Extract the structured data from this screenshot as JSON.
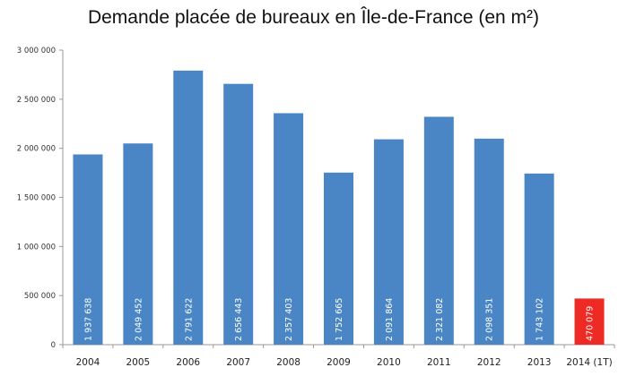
{
  "chart_data": {
    "type": "bar",
    "title": "Demande placée de bureaux en Île-de-France (en m²)",
    "categories": [
      "2004",
      "2005",
      "2006",
      "2007",
      "2008",
      "2009",
      "2010",
      "2011",
      "2012",
      "2013",
      "2014 (1T)"
    ],
    "values": [
      1937638,
      2049452,
      2791622,
      2656443,
      2357403,
      1752665,
      2091864,
      2321082,
      2098351,
      1743102,
      470079
    ],
    "data_labels": [
      "1 937 638",
      "2 049 452",
      "2 791 622",
      "2 656 443",
      "2 357 403",
      "1 752 665",
      "2 091 864",
      "2 321 082",
      "2 098 351",
      "1 743 102",
      "470 079"
    ],
    "ylim": [
      0,
      3000000
    ],
    "yticks": [
      0,
      500000,
      1000000,
      1500000,
      2000000,
      2500000,
      3000000
    ],
    "ytick_labels": [
      "0",
      "500 000",
      "1 000 000",
      "1 500 000",
      "2 000 000",
      "2 500 000",
      "3 000 000"
    ],
    "grid": false,
    "colors": {
      "bar": "#4a86c5",
      "highlight": "#ee2a24",
      "axis": "#9a9a9a"
    },
    "highlight_index": 10
  }
}
